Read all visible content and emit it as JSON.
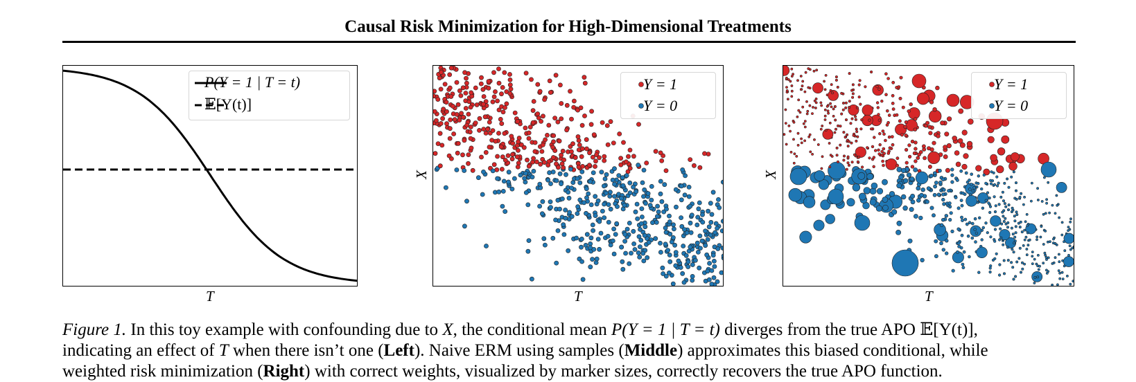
{
  "header": {
    "title": "Causal Risk Minimization for High-Dimensional Treatments"
  },
  "figure": {
    "left": {
      "xlabel": "T",
      "legend": [
        {
          "label": "P(Y = 1 | T = t)",
          "style": "solid"
        },
        {
          "label": "𝔼[Y(t)]",
          "style": "dashed"
        }
      ]
    },
    "middle": {
      "xlabel": "T",
      "ylabel": "X",
      "legend": [
        {
          "label": "Y = 1",
          "color": "#d62728"
        },
        {
          "label": "Y = 0",
          "color": "#1f77b4"
        }
      ]
    },
    "right": {
      "xlabel": "T",
      "ylabel": "X",
      "legend": [
        {
          "label": "Y = 1",
          "color": "#d62728"
        },
        {
          "label": "Y = 0",
          "color": "#1f77b4"
        }
      ]
    }
  },
  "caption": {
    "lead": "Figure 1.",
    "s1": " In this toy example with confounding due to ",
    "v1": "X",
    "s2": ", the conditional mean ",
    "v2": "P(Y = 1 | T = t)",
    "s3": " diverges from the true APO ",
    "v3": "𝔼[Y(t)]",
    "s4": ",",
    "s5": "indicating an effect of ",
    "v4": "T",
    "s6": " when there isn’t one (",
    "b1": "Left",
    "s7": "). Naive ERM using samples (",
    "b2": "Middle",
    "s8": ") approximates this biased conditional, while",
    "s9": "weighted risk minimization (",
    "b3": "Right",
    "s10": ") with correct weights, visualized by marker sizes, correctly recovers the true APO function."
  }
}
